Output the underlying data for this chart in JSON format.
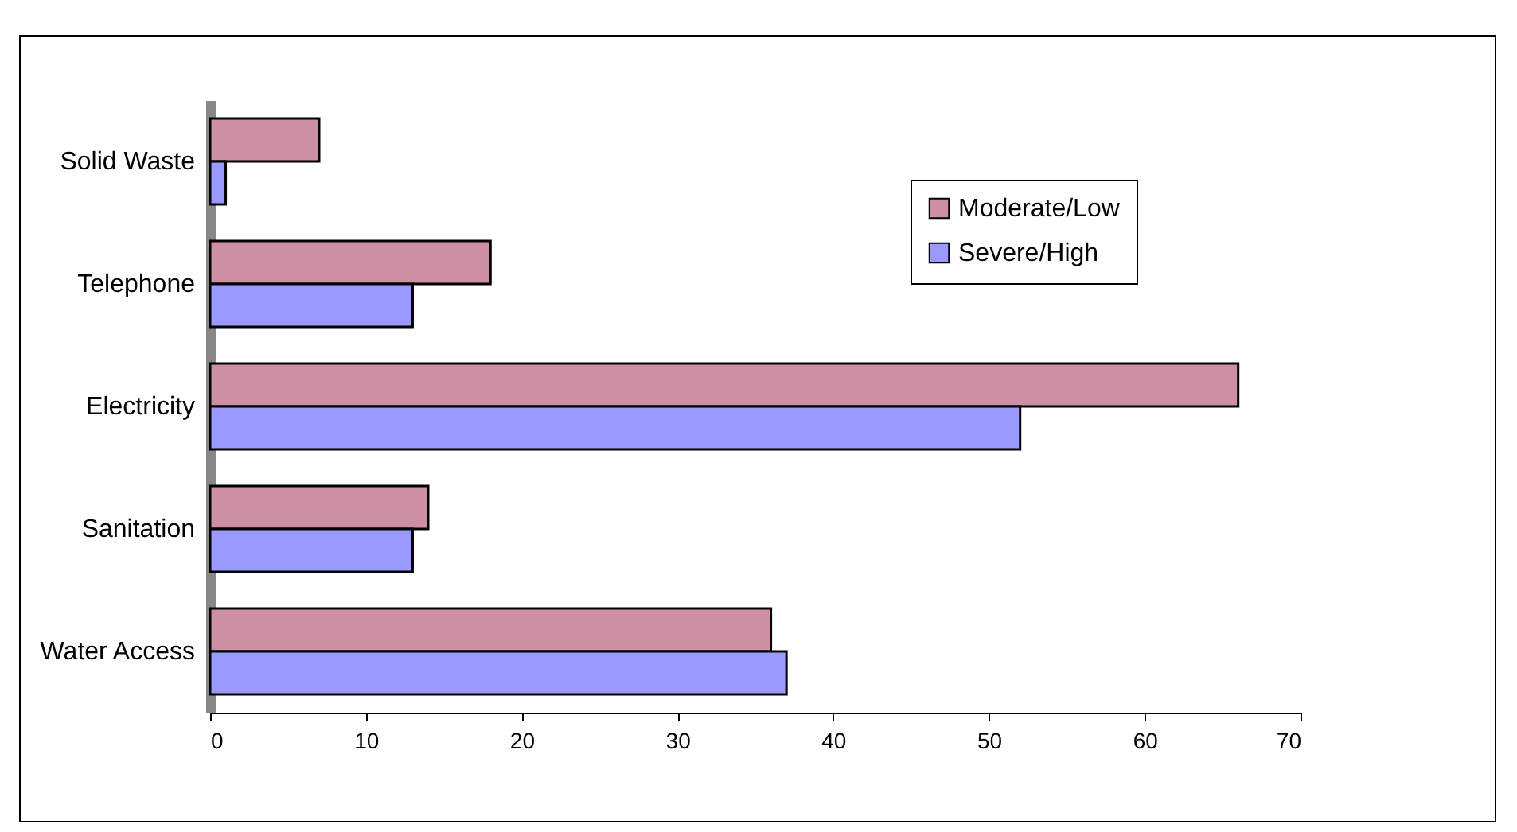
{
  "chart_data": {
    "type": "bar",
    "orientation": "horizontal",
    "categories": [
      "Solid Waste",
      "Telephone",
      "Electricity",
      "Sanitation",
      "Water Access"
    ],
    "series": [
      {
        "name": "Moderate/Low",
        "color": "#cc8fa3",
        "values": [
          7,
          18,
          66,
          14,
          36
        ]
      },
      {
        "name": "Severe/High",
        "color": "#9999ff",
        "values": [
          1,
          13,
          52,
          13,
          37
        ]
      }
    ],
    "xlim": [
      0,
      70
    ],
    "xticks": [
      0,
      10,
      20,
      30,
      40,
      50,
      60,
      70
    ],
    "grid": false,
    "legend": "top right"
  }
}
